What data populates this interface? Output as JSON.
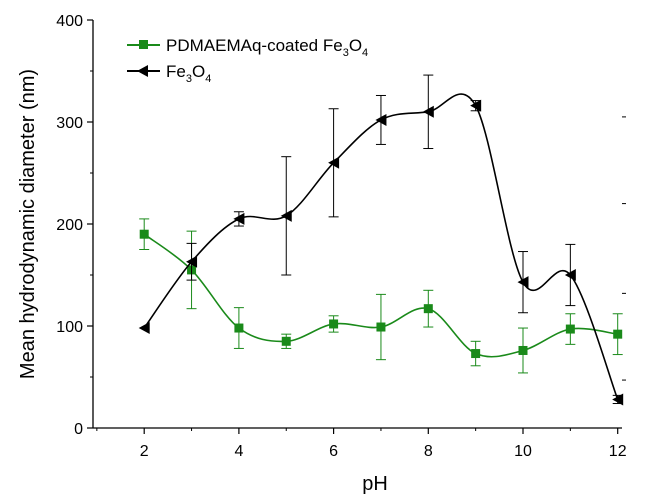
{
  "chart_data": {
    "type": "line",
    "xlabel": "pH",
    "ylabel": "Mean hydrodynamic diameter (nm)",
    "xlim": [
      1,
      12.8
    ],
    "ylim": [
      0,
      400
    ],
    "xticks": [
      2,
      4,
      6,
      8,
      10,
      12
    ],
    "yticks": [
      0,
      100,
      200,
      300,
      400
    ],
    "grid": false,
    "legend_position": "top-left",
    "series": [
      {
        "name": "PDMAEMAq-coated Fe3O4",
        "legend_text": "PDMAEMAq-coated Fe",
        "legend_sub1": "3",
        "legend_mid": "O",
        "legend_sub2": "4",
        "color": "#1a8a1a",
        "marker": "square",
        "x": [
          2,
          3,
          4,
          5,
          6,
          7,
          8,
          9,
          10,
          11,
          12
        ],
        "y": [
          190,
          155,
          98,
          85,
          102,
          99,
          117,
          73,
          76,
          97,
          92
        ],
        "err": [
          15,
          38,
          20,
          7,
          8,
          32,
          18,
          12,
          22,
          15,
          20
        ]
      },
      {
        "name": "Fe3O4",
        "legend_text": "Fe",
        "legend_sub1": "3",
        "legend_mid": "O",
        "legend_sub2": "4",
        "color": "#000000",
        "marker": "triangle-left",
        "x": [
          2,
          3,
          4,
          5,
          6,
          7,
          8,
          9,
          10,
          11,
          12
        ],
        "y": [
          98,
          163,
          205,
          208,
          260,
          302,
          310,
          316,
          143,
          150,
          28
        ],
        "err": [
          0,
          18,
          7,
          58,
          53,
          24,
          36,
          5,
          30,
          30,
          4
        ]
      }
    ]
  }
}
